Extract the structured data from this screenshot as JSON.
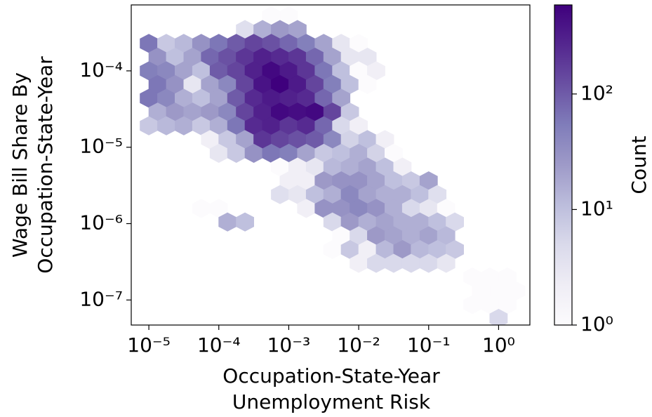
{
  "chart_data": {
    "type": "hexbin",
    "xlabel": [
      "Occupation-State-Year",
      "Unemployment Risk"
    ],
    "ylabel": [
      "Wage Bill Share By",
      "Occupation-State-Year"
    ],
    "xscale": "log",
    "yscale": "log",
    "xlim": [
      5.6e-06,
      2.8
    ],
    "ylim": [
      4.7e-08,
      0.00073
    ],
    "xticks": [
      {
        "value": 1e-05,
        "label": "10⁻⁵"
      },
      {
        "value": 0.0001,
        "label": "10⁻⁴"
      },
      {
        "value": 0.001,
        "label": "10⁻³"
      },
      {
        "value": 0.01,
        "label": "10⁻²"
      },
      {
        "value": 0.1,
        "label": "10⁻¹"
      },
      {
        "value": 1,
        "label": "10⁰"
      }
    ],
    "yticks": [
      {
        "value": 0.0001,
        "label": "10⁻⁴"
      },
      {
        "value": 1e-05,
        "label": "10⁻⁵"
      },
      {
        "value": 1e-06,
        "label": "10⁻⁶"
      },
      {
        "value": 1e-07,
        "label": "10⁻⁷"
      }
    ],
    "colorbar": {
      "label": "Count",
      "scale": "log",
      "clim": [
        1,
        590
      ],
      "ticks": [
        {
          "value": 1,
          "label": "10⁰"
        },
        {
          "value": 10,
          "label": "10¹"
        },
        {
          "value": 100,
          "label": "10²"
        }
      ],
      "colormap": [
        "#fcfbfd",
        "#efedf5",
        "#dadaeb",
        "#bcbddc",
        "#9e9ac8",
        "#807dba",
        "#6a51a3",
        "#54278f",
        "#3f007d"
      ]
    },
    "rows": [
      {
        "y": 0.000525,
        "x": [
          0.0005623,
          0.001
        ],
        "counts": [
          1,
          1
        ]
      },
      {
        "y": 0.000347,
        "x": [
          0.0002371,
          0.0004217,
          0.0007499,
          0.001334
        ],
        "counts": [
          4,
          15,
          25,
          20
        ]
      },
      {
        "y": 0.000229,
        "x": [
          1e-05,
          1.778e-05,
          3.162e-05,
          5.623e-05,
          0.0001,
          0.0001778,
          0.0003162,
          0.0005623,
          0.001,
          0.001778,
          0.003162,
          0.005623,
          0.01
        ],
        "counts": [
          60,
          8,
          12,
          30,
          60,
          100,
          150,
          120,
          80,
          50,
          20,
          3,
          1
        ]
      },
      {
        "y": 0.000151,
        "x": [
          1.334e-05,
          2.371e-05,
          4.217e-05,
          7.499e-05,
          0.0001334,
          0.0002371,
          0.0004217,
          0.0007499,
          0.001334,
          0.002371,
          0.004217,
          0.007499,
          0.01334
        ],
        "counts": [
          30,
          10,
          20,
          80,
          120,
          200,
          300,
          250,
          200,
          80,
          20,
          3,
          3
        ]
      },
      {
        "y": 0.0001,
        "x": [
          1e-05,
          1.778e-05,
          3.162e-05,
          5.623e-05,
          0.0001,
          0.0001778,
          0.0003162,
          0.0005623,
          0.001,
          0.001778,
          0.003162,
          0.005623,
          0.01,
          0.01778
        ],
        "counts": [
          50,
          40,
          20,
          10,
          100,
          150,
          300,
          500,
          350,
          200,
          60,
          10,
          1,
          2
        ]
      },
      {
        "y": 6.61e-05,
        "x": [
          1.334e-05,
          2.371e-05,
          4.217e-05,
          7.499e-05,
          0.0001334,
          0.0002371,
          0.0004217,
          0.0007499,
          0.001334,
          0.002371,
          0.004217,
          0.007499,
          0.01334
        ],
        "counts": [
          60,
          30,
          3,
          20,
          40,
          150,
          400,
          590,
          350,
          150,
          50,
          10,
          1
        ]
      },
      {
        "y": 4.37e-05,
        "x": [
          1e-05,
          1.778e-05,
          3.162e-05,
          5.623e-05,
          0.0001,
          0.0001778,
          0.0003162,
          0.0005623,
          0.001,
          0.001778,
          0.003162,
          0.005623
        ],
        "counts": [
          60,
          40,
          15,
          10,
          20,
          100,
          250,
          350,
          300,
          250,
          80,
          20
        ]
      },
      {
        "y": 2.88e-05,
        "x": [
          1.334e-05,
          2.371e-05,
          4.217e-05,
          7.499e-05,
          0.0001334,
          0.0002371,
          0.0004217,
          0.0007499,
          0.001334,
          0.002371,
          0.004217,
          0.007499
        ],
        "counts": [
          15,
          25,
          20,
          25,
          40,
          150,
          300,
          500,
          450,
          500,
          150,
          8
        ]
      },
      {
        "y": 1.91e-05,
        "x": [
          1e-05,
          1.778e-05,
          3.162e-05,
          5.623e-05,
          0.0001,
          0.0001778,
          0.0003162,
          0.0005623,
          0.001,
          0.001778,
          0.003162,
          0.005623,
          0.01
        ],
        "counts": [
          8,
          12,
          15,
          8,
          15,
          60,
          250,
          300,
          200,
          250,
          80,
          5,
          2
        ]
      },
      {
        "y": 1.26e-05,
        "x": [
          7.499e-05,
          0.0001334,
          0.0002371,
          0.0004217,
          0.0007499,
          0.001334,
          0.002371,
          0.004217,
          0.007499,
          0.01334,
          0.02371
        ],
        "counts": [
          2,
          8,
          20,
          200,
          150,
          120,
          100,
          40,
          6,
          10,
          2
        ]
      },
      {
        "y": 8.32e-06,
        "x": [
          0.0001,
          0.0001778,
          0.0003162,
          0.0005623,
          0.001,
          0.001778,
          0.003162,
          0.005623,
          0.01,
          0.01778,
          0.03162
        ],
        "counts": [
          3,
          8,
          30,
          60,
          50,
          20,
          8,
          10,
          15,
          6,
          1
        ]
      },
      {
        "y": 5.5e-06,
        "x": [
          0.0007499,
          0.001334,
          0.002371,
          0.004217,
          0.007499,
          0.01334,
          0.02371,
          0.04217
        ],
        "counts": [
          1,
          2,
          3,
          12,
          15,
          20,
          10,
          2
        ]
      },
      {
        "y": 3.63e-06,
        "x": [
          0.001,
          0.001778,
          0.003162,
          0.005623,
          0.01,
          0.01778,
          0.03162,
          0.05623,
          0.1
        ],
        "counts": [
          2,
          2,
          25,
          30,
          30,
          20,
          10,
          8,
          20
        ]
      },
      {
        "y": 2.4e-06,
        "x": [
          0.0007499,
          0.001334,
          0.002371,
          0.004217,
          0.007499,
          0.01334,
          0.02371,
          0.04217,
          0.07499,
          0.1334
        ],
        "counts": [
          4,
          3,
          10,
          15,
          40,
          20,
          15,
          15,
          10,
          4
        ]
      },
      {
        "y": 1.58e-06,
        "x": [
          5.623e-05,
          0.0001,
          0.001778,
          0.003162,
          0.005623,
          0.01,
          0.01778,
          0.03162,
          0.05623,
          0.1,
          0.1778
        ],
        "counts": [
          1,
          1,
          2,
          30,
          30,
          40,
          30,
          15,
          5,
          3,
          1
        ]
      },
      {
        "y": 1.05e-06,
        "x": [
          0.0001334,
          0.0002371,
          0.004217,
          0.007499,
          0.01334,
          0.02371,
          0.04217,
          0.07499,
          0.1334,
          0.2371
        ],
        "counts": [
          15,
          10,
          5,
          25,
          15,
          20,
          15,
          15,
          10,
          5
        ]
      },
      {
        "y": 6.92e-07,
        "x": [
          0.005623,
          0.01,
          0.01778,
          0.03162,
          0.05623,
          0.1,
          0.1778
        ],
        "counts": [
          1,
          5,
          25,
          20,
          15,
          20,
          12
        ]
      },
      {
        "y": 4.57e-07,
        "x": [
          0.004217,
          0.007499,
          0.01334,
          0.02371,
          0.04217,
          0.07499,
          0.1334,
          0.2371
        ],
        "counts": [
          1,
          8,
          2,
          12,
          25,
          12,
          10,
          8
        ]
      },
      {
        "y": 3.02e-07,
        "x": [
          0.01,
          0.01778,
          0.03162,
          0.05623,
          0.1,
          0.1778
        ],
        "counts": [
          2,
          5,
          5,
          5,
          5,
          3
        ]
      },
      {
        "y": 2e-07,
        "x": [
          0.4217,
          0.7499,
          1.334
        ],
        "counts": [
          1,
          1,
          1
        ]
      },
      {
        "y": 1.32e-07,
        "x": [
          0.5623,
          1,
          1.778
        ],
        "counts": [
          1,
          1,
          1
        ]
      },
      {
        "y": 8.71e-08,
        "x": [
          0.4217,
          0.7499,
          1.334
        ],
        "counts": [
          1,
          1,
          1
        ]
      },
      {
        "y": 5.75e-08,
        "x": [
          1
        ],
        "counts": [
          5
        ]
      }
    ]
  }
}
